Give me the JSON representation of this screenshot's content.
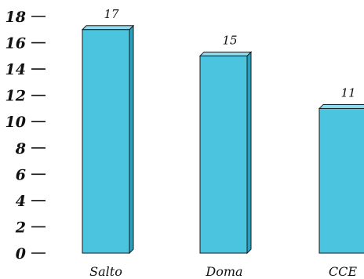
{
  "chart_data": {
    "type": "bar",
    "categories": [
      "Salto",
      "Doma",
      "CCE"
    ],
    "values": [
      17,
      15,
      11
    ],
    "data_labels": [
      "17",
      "15",
      "11"
    ],
    "y_ticks": [
      0,
      2,
      4,
      6,
      8,
      10,
      12,
      14,
      16,
      18
    ],
    "ylim": [
      0,
      18
    ],
    "title": "",
    "xlabel": "",
    "ylabel": "",
    "grid": false,
    "style": "3d-bar",
    "colors": {
      "bar_front": "#4bc4e0",
      "bar_top": "#8fdcee",
      "bar_side": "#2a9fbe",
      "edge": "#1a1a1a",
      "text": "#111111"
    }
  }
}
